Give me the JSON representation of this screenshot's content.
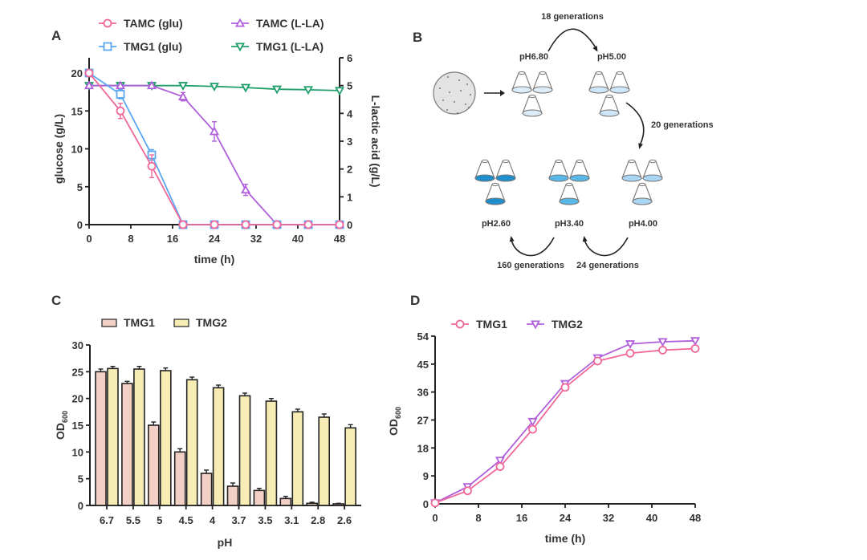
{
  "figure": {
    "panels": [
      "A",
      "B",
      "C",
      "D"
    ]
  },
  "chart_data": [
    {
      "panel": "A",
      "type": "line",
      "x": [
        0,
        6,
        12,
        18,
        24,
        30,
        36,
        42,
        48
      ],
      "xlabel": "time (h)",
      "ylabel": "glucose  (g/L)",
      "y2label": "L-lactic acid  (g/L)",
      "xlim": [
        0,
        48
      ],
      "ylim": [
        0,
        20
      ],
      "y2lim": [
        0,
        6
      ],
      "xticks": [
        "0",
        "8",
        "16",
        "24",
        "32",
        "40",
        "48"
      ],
      "yticks": [
        "0",
        "5",
        "10",
        "15",
        "20"
      ],
      "y2ticks": [
        "0",
        "1",
        "2",
        "3",
        "4",
        "5",
        "6"
      ],
      "legend": "top",
      "grid": false,
      "series": [
        {
          "name": "TAMC (glu)",
          "axis": "left",
          "marker": "circle",
          "color": "#f0679a",
          "values": [
            20,
            15,
            7.7,
            0,
            0,
            0,
            0,
            0,
            0
          ],
          "errors": [
            0.3,
            1.0,
            1.5,
            0,
            0,
            0,
            0,
            0,
            0
          ]
        },
        {
          "name": "TMG1 (glu)",
          "axis": "left",
          "marker": "square",
          "color": "#5aa7f2",
          "values": [
            20,
            17.2,
            9.2,
            0,
            0,
            0,
            0,
            0,
            0
          ],
          "errors": [
            0.2,
            0.6,
            0.7,
            0,
            0,
            0,
            0,
            0,
            0
          ]
        },
        {
          "name": "TAMC (L-LA)",
          "axis": "right",
          "marker": "triangle-up",
          "color": "#b05fdc",
          "values": [
            5.0,
            5.0,
            5.0,
            4.6,
            3.35,
            1.25,
            0,
            0,
            0
          ],
          "errors": [
            0,
            0,
            0,
            0.15,
            0.35,
            0.2,
            0,
            0,
            0
          ]
        },
        {
          "name": "TMG1 (L-LA)",
          "axis": "right",
          "marker": "triangle-down",
          "color": "#1f9e6a",
          "values": [
            5.0,
            5.0,
            5.0,
            5.0,
            4.97,
            4.93,
            4.87,
            4.85,
            4.82
          ],
          "errors": [
            0,
            0,
            0,
            0,
            0,
            0,
            0,
            0,
            0
          ]
        }
      ]
    },
    {
      "panel": "C",
      "type": "bar",
      "categories": [
        "6.7",
        "5.5",
        "5",
        "4.5",
        "4",
        "3.7",
        "3.5",
        "3.1",
        "2.8",
        "2.6"
      ],
      "xlabel": "pH",
      "ylabel": "OD",
      "ylabel_sub": "600",
      "ylim": [
        0,
        30
      ],
      "yticks": [
        "0",
        "5",
        "10",
        "15",
        "20",
        "25",
        "30"
      ],
      "legend": "top-left",
      "grid": false,
      "series": [
        {
          "name": "TMG1",
          "color": "#f3d0c6",
          "values": [
            25,
            22.8,
            15,
            10,
            6,
            3.6,
            2.8,
            1.3,
            0.4,
            0.3
          ],
          "errors": [
            0.5,
            0.4,
            0.6,
            0.6,
            0.6,
            0.6,
            0.4,
            0.4,
            0.2,
            0.1
          ]
        },
        {
          "name": "TMG2",
          "color": "#f8ecb5",
          "values": [
            25.6,
            25.5,
            25.2,
            23.5,
            22,
            20.5,
            19.5,
            17.5,
            16.5,
            14.5
          ],
          "errors": [
            0.4,
            0.5,
            0.5,
            0.5,
            0.5,
            0.5,
            0.5,
            0.5,
            0.6,
            0.6
          ]
        }
      ]
    },
    {
      "panel": "D",
      "type": "line",
      "x": [
        0,
        6,
        12,
        18,
        24,
        30,
        36,
        42,
        48
      ],
      "xlabel": "time (h)",
      "ylabel": "OD",
      "ylabel_sub": "600",
      "xlim": [
        0,
        48
      ],
      "ylim": [
        0,
        54
      ],
      "xticks": [
        "0",
        "8",
        "16",
        "24",
        "32",
        "40",
        "48"
      ],
      "yticks": [
        "0",
        "9",
        "18",
        "27",
        "36",
        "45",
        "54"
      ],
      "legend": "top",
      "grid": false,
      "series": [
        {
          "name": "TMG1",
          "marker": "circle",
          "color": "#f0679a",
          "values": [
            0.3,
            4.2,
            12,
            24,
            37.5,
            46,
            48.5,
            49.5,
            50
          ]
        },
        {
          "name": "TMG2",
          "marker": "triangle-down",
          "color": "#b05fdc",
          "values": [
            0.3,
            5.5,
            14,
            26.5,
            38.7,
            47,
            51.5,
            52.2,
            52.5
          ]
        }
      ]
    }
  ],
  "diagram_b": {
    "panel": "B",
    "stages": [
      {
        "label": "pH6.80",
        "flask_color": "#dcecf8"
      },
      {
        "label": "pH5.00",
        "flask_color": "#cfe6f8"
      },
      {
        "label": "pH4.00",
        "flask_color": "#a9d6f5"
      },
      {
        "label": "pH3.40",
        "flask_color": "#5ab8e8"
      },
      {
        "label": "pH2.60",
        "flask_color": "#1e8fcc"
      }
    ],
    "transitions": [
      {
        "label": "18 generations"
      },
      {
        "label": "20 generations"
      },
      {
        "label": "24 generations"
      },
      {
        "label": "160 generations"
      }
    ]
  }
}
